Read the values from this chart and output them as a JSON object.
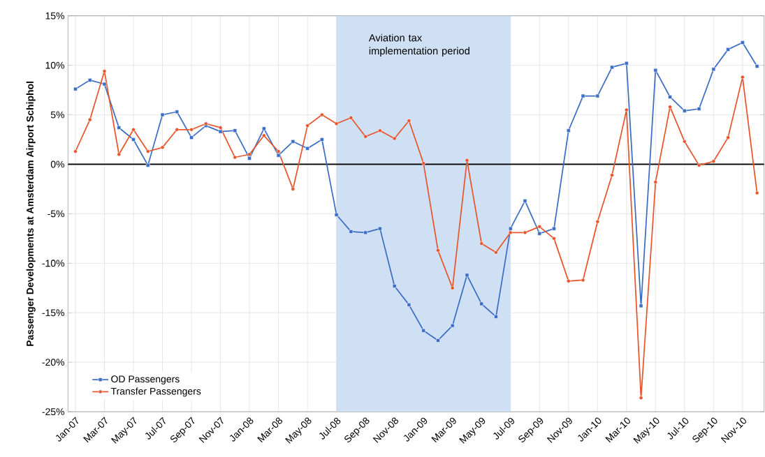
{
  "chart_data": {
    "type": "line",
    "ylabel": "Passenger Developments at Amsterdam Airport Schiphol",
    "x": [
      "2007-01",
      "2007-02",
      "2007-03",
      "2007-04",
      "2007-05",
      "2007-06",
      "2007-07",
      "2007-08",
      "2007-09",
      "2007-10",
      "2007-11",
      "2007-12",
      "2008-01",
      "2008-02",
      "2008-03",
      "2008-04",
      "2008-05",
      "2008-06",
      "2008-07",
      "2008-08",
      "2008-09",
      "2008-10",
      "2008-11",
      "2008-12",
      "2009-01",
      "2009-02",
      "2009-03",
      "2009-04",
      "2009-05",
      "2009-06",
      "2009-07",
      "2009-08",
      "2009-09",
      "2009-10",
      "2009-11",
      "2009-12",
      "2010-01",
      "2010-02",
      "2010-03",
      "2010-04",
      "2010-05",
      "2010-06",
      "2010-07",
      "2010-08",
      "2010-09",
      "2010-10",
      "2010-11",
      "2010-12"
    ],
    "series": [
      {
        "name": "OD Passengers",
        "color": "#3b6dc4",
        "marker": "square",
        "values": [
          7.6,
          8.5,
          8.1,
          3.7,
          2.5,
          -0.1,
          5.0,
          5.3,
          2.7,
          3.9,
          3.3,
          3.4,
          0.6,
          3.6,
          0.9,
          2.3,
          1.6,
          2.5,
          -5.1,
          -6.8,
          -6.9,
          -6.5,
          -12.3,
          -14.2,
          -16.8,
          -17.8,
          -16.3,
          -11.2,
          -14.1,
          -15.4,
          -6.5,
          -3.7,
          -7.0,
          -6.5,
          3.4,
          6.9,
          6.9,
          9.8,
          10.2,
          -14.3,
          9.5,
          6.8,
          5.4,
          5.6,
          9.6,
          11.6,
          12.3,
          9.9
        ]
      },
      {
        "name": "Transfer Passengers",
        "color": "#e8552b",
        "marker": "circle",
        "values": [
          1.3,
          4.5,
          9.4,
          1.0,
          3.5,
          1.3,
          1.7,
          3.5,
          3.5,
          4.1,
          3.7,
          0.7,
          1.0,
          2.9,
          1.3,
          -2.5,
          3.9,
          5.0,
          4.1,
          4.7,
          2.8,
          3.4,
          2.6,
          4.4,
          0.1,
          -8.7,
          -12.5,
          0.4,
          -8.0,
          -8.9,
          -6.9,
          -6.9,
          -6.3,
          -7.5,
          -11.8,
          -11.7,
          -5.8,
          -1.1,
          5.5,
          -23.6,
          -1.8,
          5.8,
          2.3,
          -0.1,
          0.3,
          2.7,
          8.8,
          -2.9
        ]
      }
    ],
    "xlim": [
      "2006-12-16",
      "2010-12-16"
    ],
    "xticks": [
      {
        "value": "2007-01",
        "label": "Jan-07"
      },
      {
        "value": "2007-03",
        "label": "Mar-07"
      },
      {
        "value": "2007-05",
        "label": "May-07"
      },
      {
        "value": "2007-07",
        "label": "Jul-07"
      },
      {
        "value": "2007-09",
        "label": "Sep-07"
      },
      {
        "value": "2007-11",
        "label": "Nov-07"
      },
      {
        "value": "2008-01",
        "label": "Jan-08"
      },
      {
        "value": "2008-03",
        "label": "Mar-08"
      },
      {
        "value": "2008-05",
        "label": "May-08"
      },
      {
        "value": "2008-07",
        "label": "Jul-08"
      },
      {
        "value": "2008-09",
        "label": "Sep-08"
      },
      {
        "value": "2008-11",
        "label": "Nov-08"
      },
      {
        "value": "2009-01",
        "label": "Jan-09"
      },
      {
        "value": "2009-03",
        "label": "Mar-09"
      },
      {
        "value": "2009-05",
        "label": "May-09"
      },
      {
        "value": "2009-07",
        "label": "Jul-09"
      },
      {
        "value": "2009-09",
        "label": "Sep-09"
      },
      {
        "value": "2009-11",
        "label": "Nov-09"
      },
      {
        "value": "2010-01",
        "label": "Jan-10"
      },
      {
        "value": "2010-03",
        "label": "Mar-10"
      },
      {
        "value": "2010-05",
        "label": "May-10"
      },
      {
        "value": "2010-07",
        "label": "Jul-10"
      },
      {
        "value": "2010-09",
        "label": "Sep-10"
      },
      {
        "value": "2010-11",
        "label": "Nov-10"
      }
    ],
    "ylim": [
      -25,
      15
    ],
    "yticks": [
      {
        "value": -25,
        "label": "-25%"
      },
      {
        "value": -20,
        "label": "-20%"
      },
      {
        "value": -15,
        "label": "-15%"
      },
      {
        "value": -10,
        "label": "-10%"
      },
      {
        "value": -5,
        "label": "-5%"
      },
      {
        "value": 0,
        "label": "0%"
      },
      {
        "value": 5,
        "label": "5%"
      },
      {
        "value": 10,
        "label": "10%"
      },
      {
        "value": 15,
        "label": "15%"
      }
    ],
    "bands": [
      {
        "axis": "x",
        "from": "2008-07",
        "to": "2009-07",
        "label": "Aviation tax implementation period",
        "color": "#cfe0f4"
      }
    ],
    "ref_lines": [
      {
        "axis": "y",
        "value": 0,
        "color": "#000000"
      }
    ],
    "grid": true,
    "legend": "bottom left",
    "line_style": "solid"
  }
}
